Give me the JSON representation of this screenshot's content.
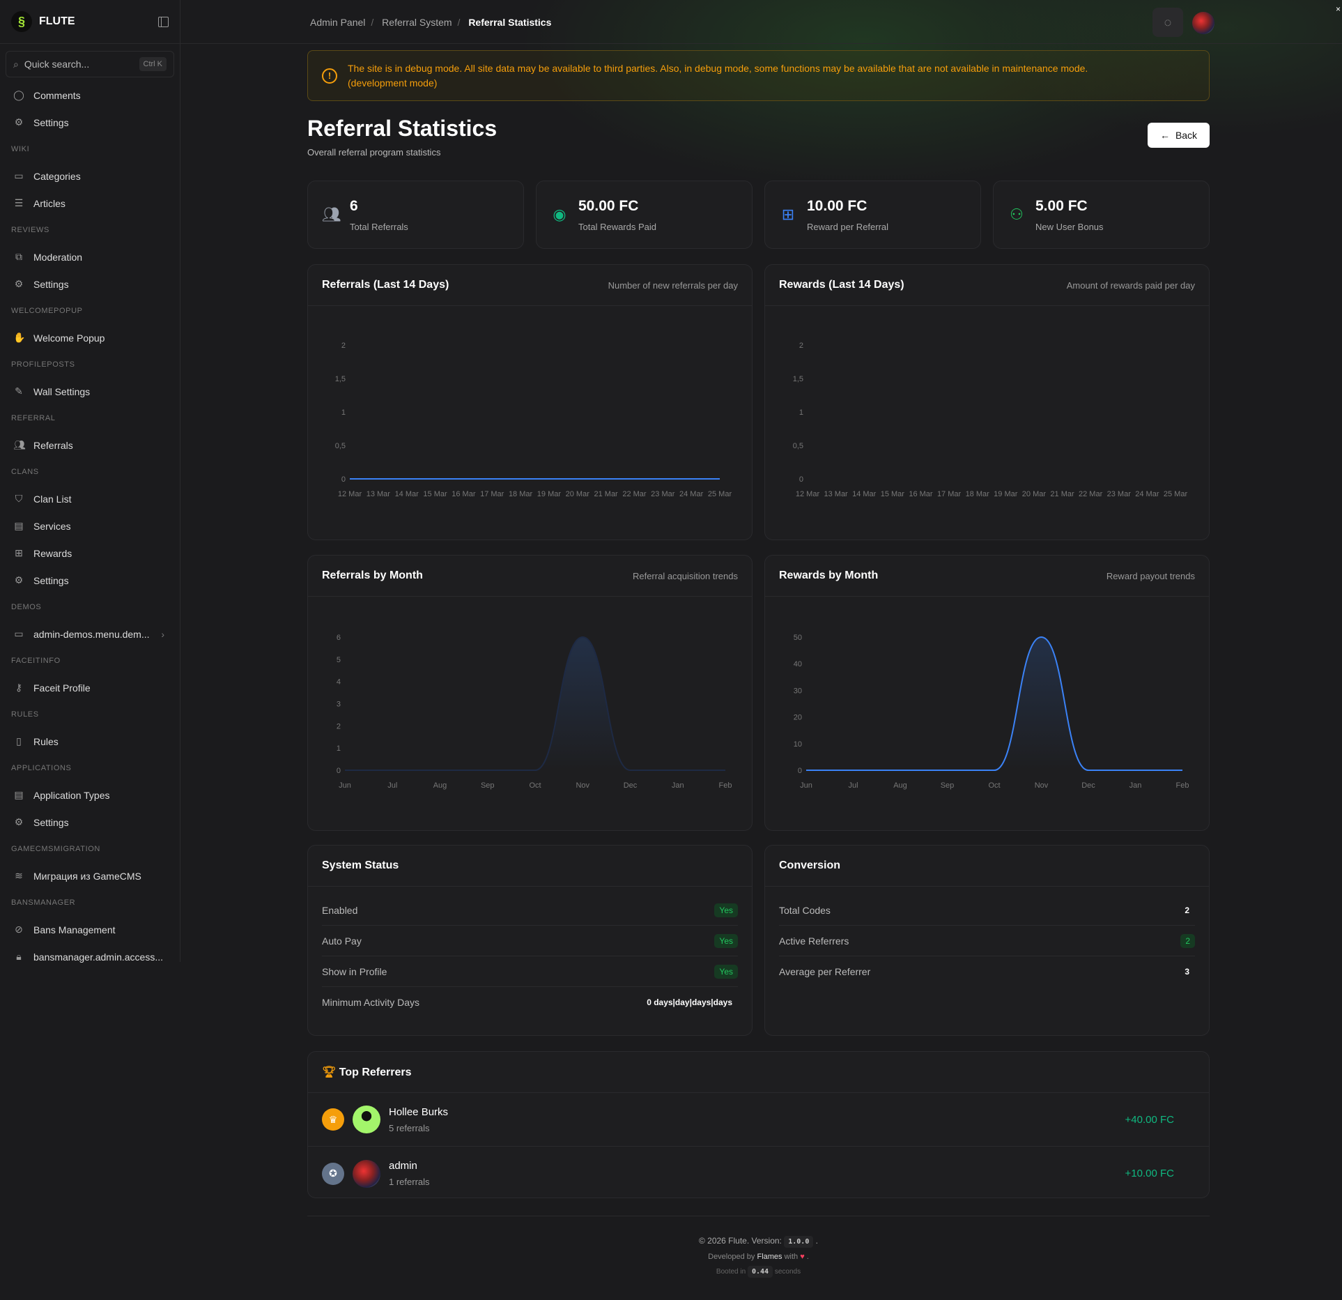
{
  "app": {
    "brand": "FLUTE"
  },
  "search": {
    "placeholder": "Quick search...",
    "shortcut": "Ctrl K"
  },
  "sidebar": [
    {
      "type": "item",
      "label": "Comments",
      "icon": "comment-icon"
    },
    {
      "type": "item",
      "label": "Settings",
      "icon": "gear-icon"
    },
    {
      "type": "section",
      "label": "WIKI"
    },
    {
      "type": "item",
      "label": "Categories",
      "icon": "folder-icon"
    },
    {
      "type": "item",
      "label": "Articles",
      "icon": "article-icon"
    },
    {
      "type": "section",
      "label": "REVIEWS"
    },
    {
      "type": "item",
      "label": "Moderation",
      "icon": "moderation-icon"
    },
    {
      "type": "item",
      "label": "Settings",
      "icon": "gear-icon"
    },
    {
      "type": "section",
      "label": "WELCOMEPOPUP"
    },
    {
      "type": "item",
      "label": "Welcome Popup",
      "icon": "hand-wave-icon"
    },
    {
      "type": "section",
      "label": "PROFILEPOSTS"
    },
    {
      "type": "item",
      "label": "Wall Settings",
      "icon": "edit-icon"
    },
    {
      "type": "section",
      "label": "REFERRAL"
    },
    {
      "type": "item",
      "label": "Referrals",
      "icon": "users-icon"
    },
    {
      "type": "section",
      "label": "CLANS"
    },
    {
      "type": "item",
      "label": "Clan List",
      "icon": "shield-icon"
    },
    {
      "type": "item",
      "label": "Services",
      "icon": "store-icon"
    },
    {
      "type": "item",
      "label": "Rewards",
      "icon": "gift-icon"
    },
    {
      "type": "item",
      "label": "Settings",
      "icon": "gear-icon"
    },
    {
      "type": "section",
      "label": "DEMOS"
    },
    {
      "type": "item",
      "label": "admin-demos.menu.dem...",
      "icon": "video-icon",
      "chevron": true
    },
    {
      "type": "section",
      "label": "FACEITINFO"
    },
    {
      "type": "item",
      "label": "Faceit Profile",
      "icon": "key-icon"
    },
    {
      "type": "section",
      "label": "RULES"
    },
    {
      "type": "item",
      "label": "Rules",
      "icon": "book-icon"
    },
    {
      "type": "section",
      "label": "APPLICATIONS"
    },
    {
      "type": "item",
      "label": "Application Types",
      "icon": "clipboard-icon"
    },
    {
      "type": "item",
      "label": "Settings",
      "icon": "gear-icon"
    },
    {
      "type": "section",
      "label": "GAMECMSMIGRATION"
    },
    {
      "type": "item",
      "label": "Миграция из GameCMS",
      "icon": "database-icon"
    },
    {
      "type": "section",
      "label": "BANSMANAGER"
    },
    {
      "type": "item",
      "label": "Bans Management",
      "icon": "ban-icon"
    },
    {
      "type": "item",
      "label": "bansmanager.admin.access...",
      "icon": "lock-icon"
    }
  ],
  "breadcrumb": [
    "Admin Panel",
    "Referral System",
    "Referral Statistics"
  ],
  "banner": {
    "text": "The site is in debug mode. All site data may be available to third parties. Also, in debug mode, some functions may be available that are not available in maintenance mode.",
    "mode": "(development mode)"
  },
  "page": {
    "title": "Referral Statistics",
    "subtitle": "Overall referral program statistics",
    "back_label": "Back"
  },
  "stats": [
    {
      "value": "6",
      "label": "Total Referrals",
      "icon": "users-icon",
      "color": "#9ca3af"
    },
    {
      "value": "50.00 FC",
      "label": "Total Rewards Paid",
      "icon": "coins-icon",
      "color": "#10b981"
    },
    {
      "value": "10.00 FC",
      "label": "Reward per Referral",
      "icon": "gift-icon",
      "color": "#3b82f6"
    },
    {
      "value": "5.00 FC",
      "label": "New User Bonus",
      "icon": "user-plus-icon",
      "color": "#22c55e"
    }
  ],
  "chart_data": [
    {
      "type": "line",
      "title": "Referrals (Last 14 Days)",
      "subtitle": "Number of new referrals per day",
      "categories": [
        "12 Mar",
        "13 Mar",
        "14 Mar",
        "15 Mar",
        "16 Mar",
        "17 Mar",
        "18 Mar",
        "19 Mar",
        "20 Mar",
        "21 Mar",
        "22 Mar",
        "23 Mar",
        "24 Mar",
        "25 Mar"
      ],
      "yticks": [
        "0",
        "0,5",
        "1",
        "1,5",
        "2"
      ],
      "ylim": [
        0,
        2
      ],
      "series": [
        {
          "values": [
            0,
            0,
            0,
            0,
            0,
            0,
            0,
            0,
            0,
            0,
            0,
            0,
            0,
            0
          ],
          "color": "#3b82f6"
        }
      ]
    },
    {
      "type": "line",
      "title": "Rewards (Last 14 Days)",
      "subtitle": "Amount of rewards paid per day",
      "categories": [
        "12 Mar",
        "13 Mar",
        "14 Mar",
        "15 Mar",
        "16 Mar",
        "17 Mar",
        "18 Mar",
        "19 Mar",
        "20 Mar",
        "21 Mar",
        "22 Mar",
        "23 Mar",
        "24 Mar",
        "25 Mar"
      ],
      "yticks": [
        "0",
        "0,5",
        "1",
        "1,5",
        "2"
      ],
      "ylim": [
        0,
        2
      ],
      "series": []
    },
    {
      "type": "area",
      "title": "Referrals by Month",
      "subtitle": "Referral acquisition trends",
      "categories": [
        "Jun",
        "Jul",
        "Aug",
        "Sep",
        "Oct",
        "Nov",
        "Dec",
        "Jan",
        "Feb"
      ],
      "yticks": [
        "0",
        "1",
        "2",
        "3",
        "4",
        "5",
        "6"
      ],
      "ylim": [
        0,
        6
      ],
      "series": [
        {
          "values": [
            0,
            0,
            0,
            0,
            0,
            6,
            0,
            0,
            0
          ],
          "color": "#1e2a44"
        }
      ]
    },
    {
      "type": "area",
      "title": "Rewards by Month",
      "subtitle": "Reward payout trends",
      "categories": [
        "Jun",
        "Jul",
        "Aug",
        "Sep",
        "Oct",
        "Nov",
        "Dec",
        "Jan",
        "Feb"
      ],
      "yticks": [
        "0",
        "10",
        "20",
        "30",
        "40",
        "50"
      ],
      "ylim": [
        0,
        50
      ],
      "series": [
        {
          "values": [
            0,
            0,
            0,
            0,
            0,
            50,
            0,
            0,
            0
          ],
          "color": "#3b82f6"
        }
      ]
    }
  ],
  "system_status": {
    "title": "System Status",
    "rows": [
      {
        "label": "Enabled",
        "value": "Yes",
        "badge": true
      },
      {
        "label": "Auto Pay",
        "value": "Yes",
        "badge": true
      },
      {
        "label": "Show in Profile",
        "value": "Yes",
        "badge": true
      },
      {
        "label": "Minimum Activity Days",
        "value": "0 days|day|days|days",
        "badge": false
      }
    ]
  },
  "conversion": {
    "title": "Conversion",
    "rows": [
      {
        "label": "Total Codes",
        "value": "2",
        "badge": false
      },
      {
        "label": "Active Referrers",
        "value": "2",
        "badge": true
      },
      {
        "label": "Average per Referrer",
        "value": "3",
        "badge": false
      }
    ]
  },
  "top_referrers": {
    "title": "Top Referrers",
    "items": [
      {
        "name": "Hollee Burks",
        "count": "5 referrals",
        "amount": "+40.00 FC",
        "rank_icon": "crown-icon"
      },
      {
        "name": "admin",
        "count": "1 referrals",
        "amount": "+10.00 FC",
        "rank_icon": "medal-icon"
      }
    ]
  },
  "footer": {
    "copyright": "© 2026 Flute. Version:",
    "version": "1.0.0",
    "dev_prefix": "Developed by",
    "dev": "Flames",
    "dev_suffix": "with",
    "booted_prefix": "Booted in",
    "booted": "0.44",
    "booted_suffix": "seconds"
  }
}
